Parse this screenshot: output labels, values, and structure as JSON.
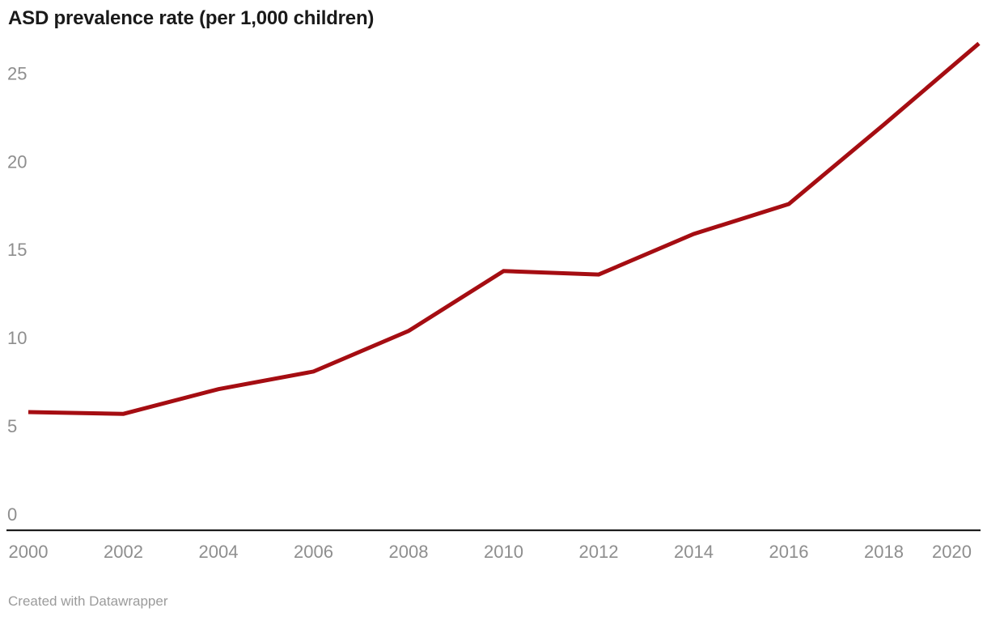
{
  "header": {
    "title": "ASD prevalence rate (per 1,000 children)"
  },
  "footer": {
    "credit": "Created with Datawrapper"
  },
  "colors": {
    "line": "#a50d12",
    "title_text": "#1a1a1a",
    "axis_text": "#8e8e8e",
    "baseline": "#1d1d1d",
    "footer_text": "#9b9b9b",
    "background": "#ffffff"
  },
  "chart_data": {
    "type": "line",
    "title": "ASD prevalence rate (per 1,000 children)",
    "xlabel": "",
    "ylabel": "per 1,000 children",
    "x": [
      2000,
      2002,
      2004,
      2006,
      2008,
      2010,
      2012,
      2014,
      2016,
      2018,
      2020
    ],
    "series": [
      {
        "name": "ASD prevalence rate (per 1,000 children)",
        "values": [
          6.7,
          6.6,
          8.0,
          9.0,
          11.3,
          14.7,
          14.5,
          16.8,
          18.5,
          23.0,
          27.6
        ]
      }
    ],
    "xticks": [
      "2000",
      "2002",
      "2004",
      "2006",
      "2008",
      "2010",
      "2012",
      "2014",
      "2016",
      "2018",
      "2020"
    ],
    "yticks": [
      0,
      5,
      10,
      15,
      20,
      25
    ],
    "xlim": [
      2000,
      2020
    ],
    "ylim": [
      0,
      28
    ],
    "grid": false,
    "legend_position": "none",
    "line_color": "#a50d12"
  }
}
